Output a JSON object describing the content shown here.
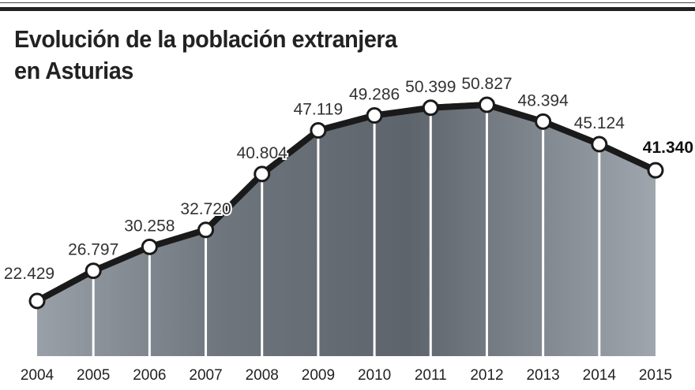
{
  "title_line1": "Evolución de la población extranjera",
  "title_line2": "en Asturias",
  "colors": {
    "line": "#1a1a1a",
    "photo": "#8a9098",
    "marker_fill": "#ffffff"
  },
  "chart_data": {
    "type": "line",
    "title": "Evolución de la población extranjera en Asturias",
    "xlabel": "",
    "ylabel": "",
    "categories": [
      "2004",
      "2005",
      "2006",
      "2007",
      "2008",
      "2009",
      "2010",
      "2011",
      "2012",
      "2013",
      "2014",
      "2015"
    ],
    "values": [
      22429,
      26797,
      30258,
      32720,
      40804,
      47119,
      49286,
      50399,
      50827,
      48394,
      45124,
      41340
    ],
    "labels": [
      "22.429",
      "26.797",
      "30.258",
      "32.720",
      "40.804",
      "47.119",
      "49.286",
      "50.399",
      "50.827",
      "48.394",
      "45.124",
      "41.340"
    ],
    "highlight_last": true,
    "grid": false
  }
}
